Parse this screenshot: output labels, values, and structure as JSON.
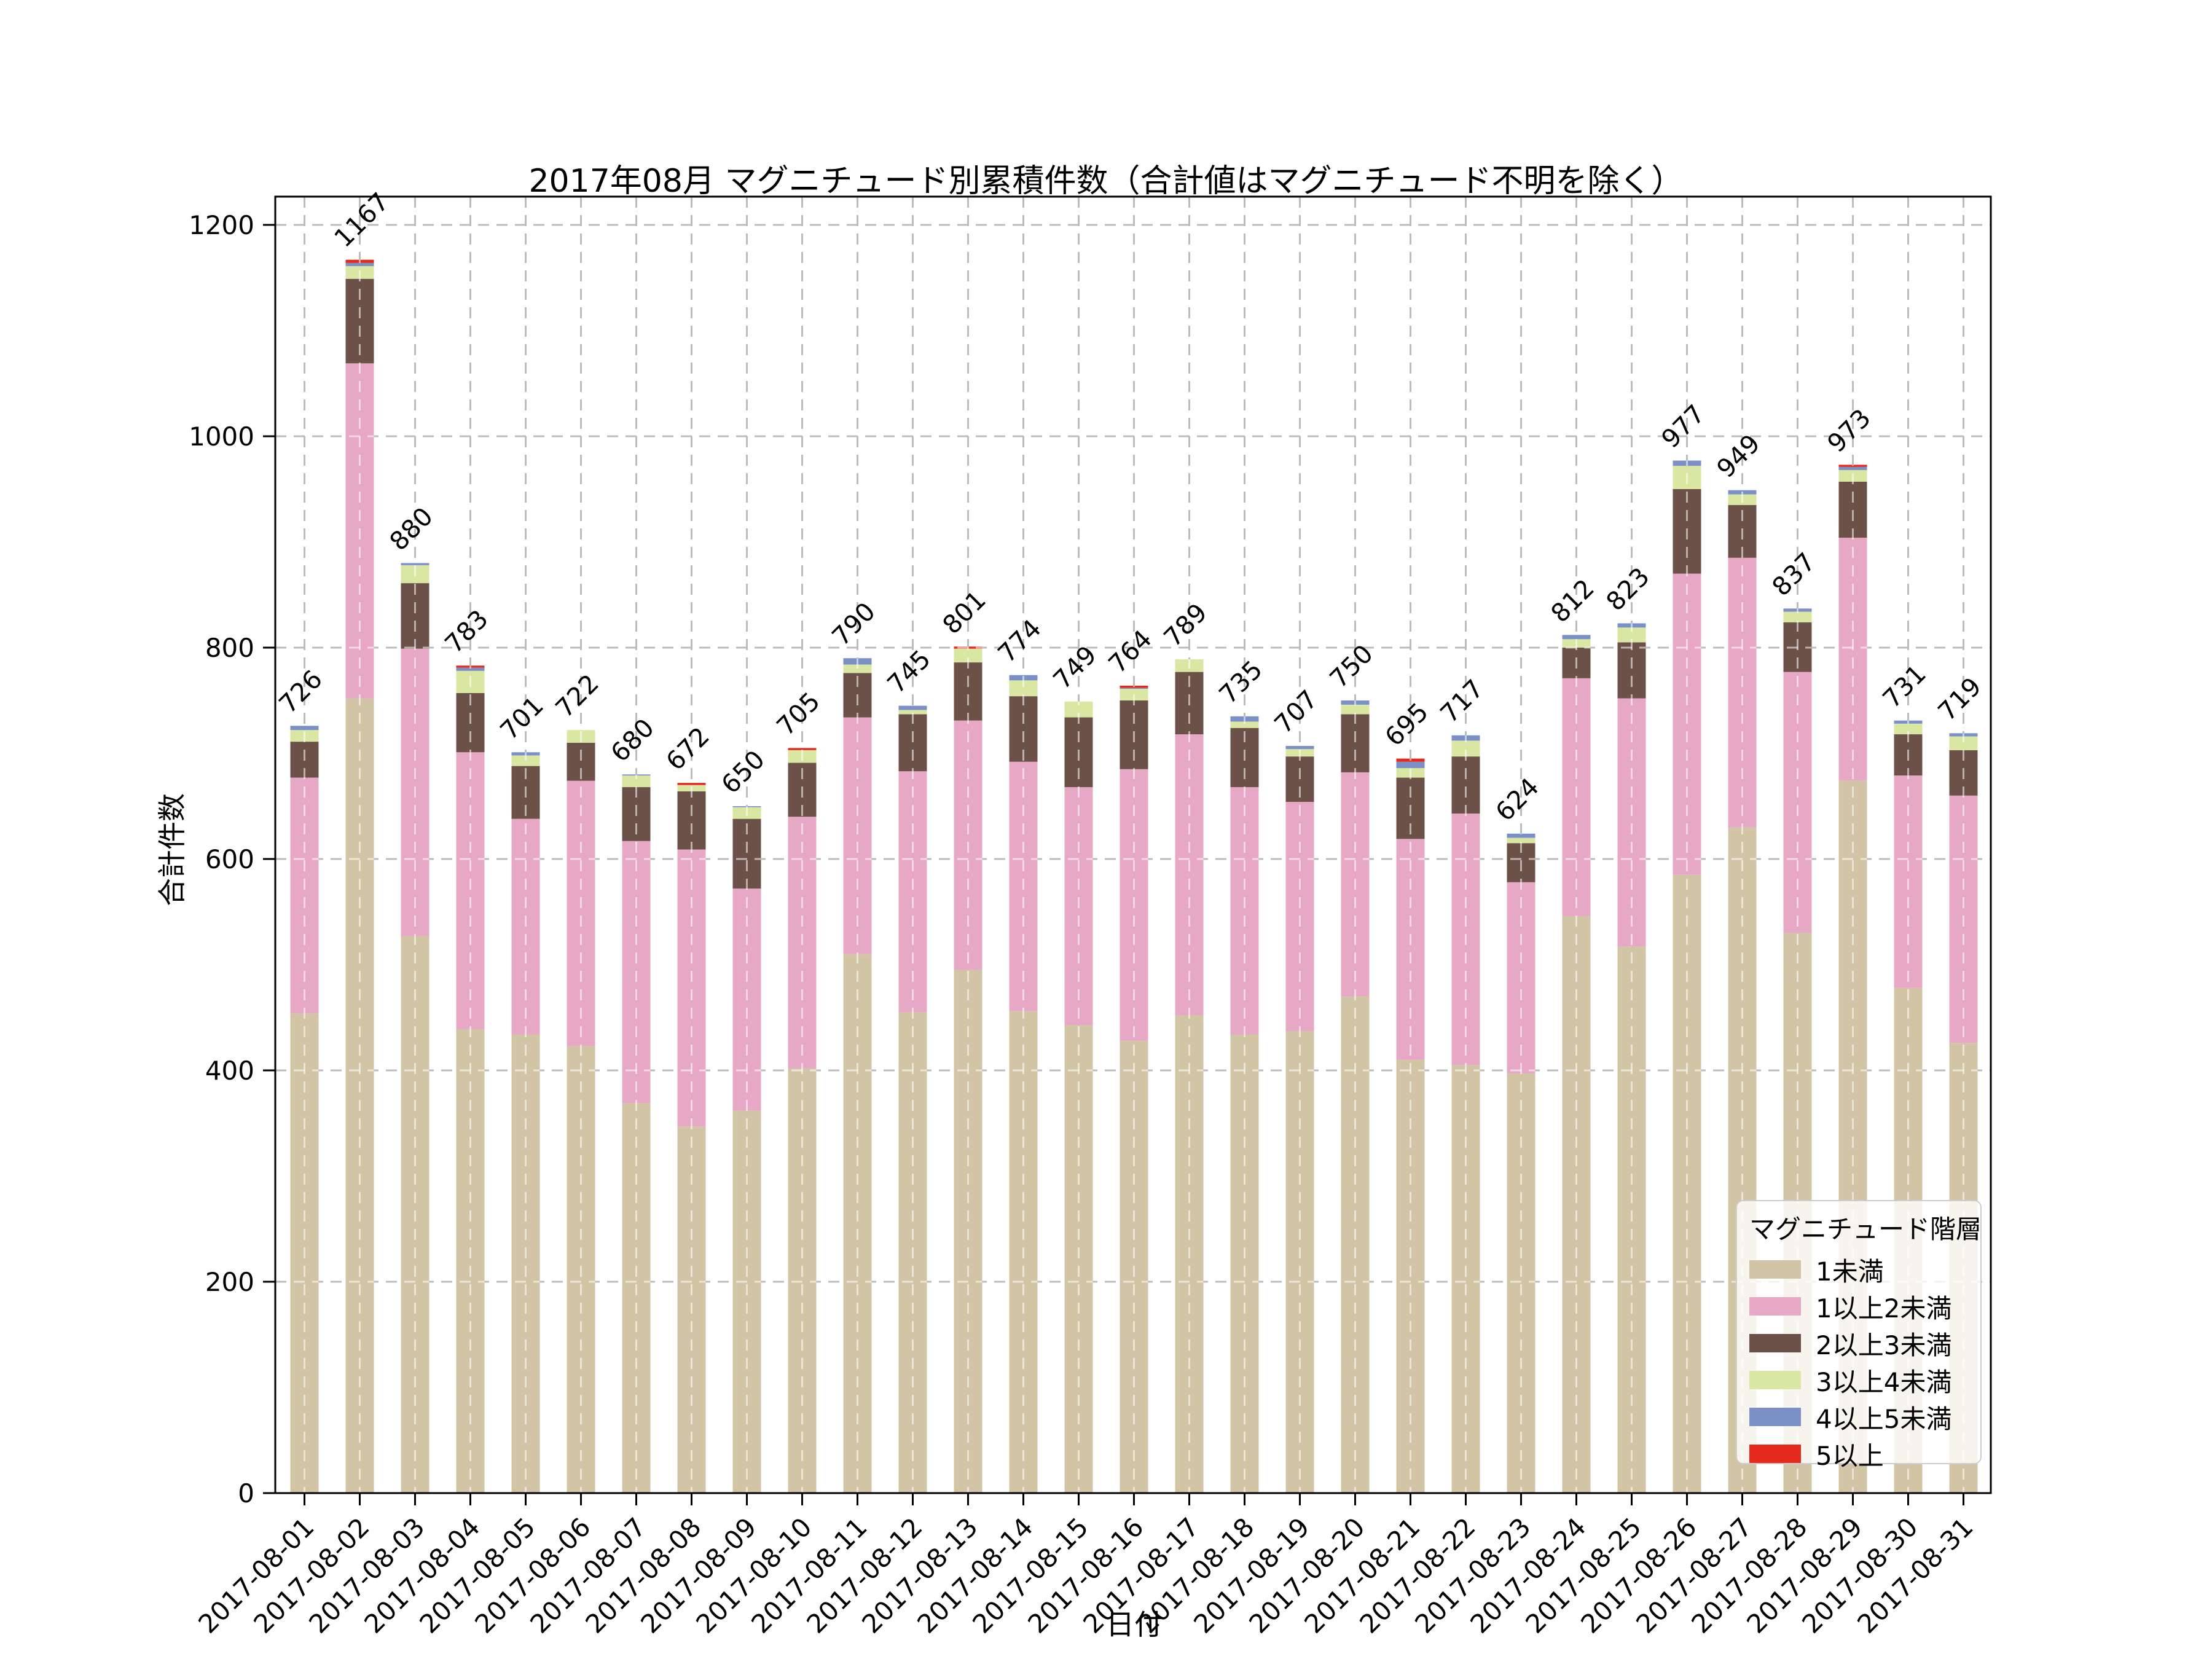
{
  "title": "2017年08月 マグニチュード別累積件数（合計値はマグニチュード不明を除く）",
  "axes": {
    "x_label": "日付",
    "y_label": "合計件数",
    "y_ticks": [
      0,
      200,
      400,
      600,
      800,
      1000,
      1200
    ]
  },
  "legend": {
    "title": "マグニチュード階層",
    "items": [
      {
        "label": "1未満",
        "color": "#d2c5a6"
      },
      {
        "label": "1以上2未満",
        "color": "#e7a8c5"
      },
      {
        "label": "2以上3未満",
        "color": "#6c5149"
      },
      {
        "label": "3以上4未満",
        "color": "#d9e7a2"
      },
      {
        "label": "4以上5未満",
        "color": "#7b90c7"
      },
      {
        "label": "5以上",
        "color": "#e5291d"
      }
    ]
  },
  "chart_data": {
    "type": "bar",
    "stacked": true,
    "title": "2017年08月 マグニチュード別累積件数（合計値はマグニチュード不明を除く）",
    "xlabel": "日付",
    "ylabel": "合計件数",
    "ylim": [
      0,
      1227
    ],
    "grid": "dashed-both-axes",
    "legend_position": "lower right",
    "bar_label_rotation": 45,
    "x_tick_rotation": 45,
    "categories": [
      "2017-08-01",
      "2017-08-02",
      "2017-08-03",
      "2017-08-04",
      "2017-08-05",
      "2017-08-06",
      "2017-08-07",
      "2017-08-08",
      "2017-08-09",
      "2017-08-10",
      "2017-08-11",
      "2017-08-12",
      "2017-08-13",
      "2017-08-14",
      "2017-08-15",
      "2017-08-16",
      "2017-08-17",
      "2017-08-18",
      "2017-08-19",
      "2017-08-20",
      "2017-08-21",
      "2017-08-22",
      "2017-08-23",
      "2017-08-24",
      "2017-08-25",
      "2017-08-26",
      "2017-08-27",
      "2017-08-28",
      "2017-08-29",
      "2017-08-30",
      "2017-08-31"
    ],
    "totals": [
      726,
      1167,
      880,
      783,
      701,
      722,
      680,
      672,
      650,
      705,
      790,
      745,
      801,
      774,
      749,
      764,
      789,
      735,
      707,
      750,
      695,
      717,
      624,
      812,
      823,
      977,
      949,
      837,
      973,
      731,
      719
    ],
    "series": [
      {
        "name": "1未満",
        "color": "#d2c5a6",
        "values": [
          454,
          752,
          527,
          439,
          434,
          423,
          369,
          347,
          362,
          402,
          510,
          455,
          495,
          456,
          443,
          428,
          452,
          434,
          437,
          470,
          410,
          405,
          397,
          546,
          517,
          585,
          630,
          530,
          674,
          478,
          426
        ]
      },
      {
        "name": "1以上2未満",
        "color": "#e7a8c5",
        "values": [
          223,
          317,
          272,
          262,
          204,
          251,
          248,
          262,
          210,
          238,
          224,
          228,
          236,
          236,
          225,
          257,
          266,
          234,
          217,
          212,
          209,
          238,
          181,
          225,
          235,
          285,
          255,
          247,
          230,
          201,
          234
        ]
      },
      {
        "name": "2以上3未満",
        "color": "#6c5149",
        "values": [
          34,
          80,
          62,
          56,
          50,
          36,
          51,
          55,
          66,
          51,
          42,
          54,
          55,
          62,
          66,
          65,
          59,
          56,
          43,
          55,
          58,
          54,
          37,
          29,
          53,
          80,
          50,
          47,
          53,
          39,
          43
        ]
      },
      {
        "name": "3以上4未満",
        "color": "#d9e7a2",
        "values": [
          11,
          12,
          17,
          21,
          10,
          12,
          11,
          6,
          11,
          12,
          8,
          4,
          13,
          15,
          15,
          11,
          12,
          6,
          7,
          9,
          9,
          15,
          5,
          8,
          14,
          22,
          10,
          10,
          11,
          10,
          13
        ]
      },
      {
        "name": "4以上5未満",
        "color": "#7b90c7",
        "values": [
          4,
          3,
          2,
          3,
          3,
          0,
          1,
          0,
          1,
          0,
          6,
          4,
          0,
          5,
          0,
          1,
          0,
          5,
          3,
          4,
          6,
          5,
          4,
          4,
          4,
          5,
          4,
          3,
          3,
          3,
          3
        ]
      },
      {
        "name": "5以上",
        "color": "#e5291d",
        "values": [
          0,
          3,
          0,
          2,
          0,
          0,
          0,
          2,
          0,
          2,
          0,
          0,
          2,
          0,
          0,
          2,
          0,
          0,
          0,
          0,
          3,
          0,
          0,
          0,
          0,
          0,
          0,
          0,
          2,
          0,
          0
        ]
      }
    ]
  }
}
